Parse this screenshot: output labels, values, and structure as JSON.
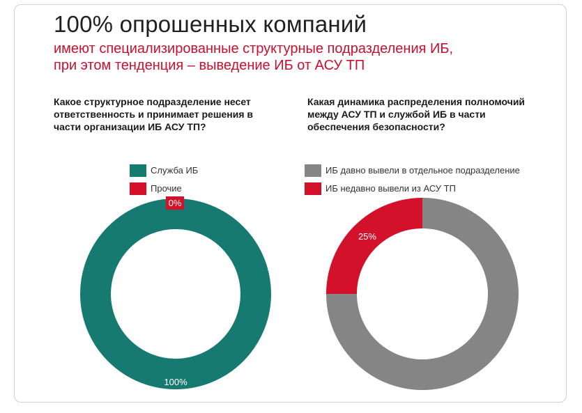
{
  "header": {
    "title": "100% опрошенных компаний",
    "subtitle_line1": "имеют специализированные структурные подразделения ИБ,",
    "subtitle_line2": "при этом тенденция – выведение ИБ от АСУ ТП"
  },
  "colors": {
    "teal": "#177a70",
    "red": "#d4112a",
    "grey": "#858585"
  },
  "chart_data": [
    {
      "type": "pie",
      "donut": true,
      "title": "Какое структурное подразделение несет ответственность и принимает решения в части организации ИБ АСУ ТП?",
      "title_lines": [
        "Какое структурное подразделение несет",
        "ответственность и принимает решения в",
        "части организации ИБ АСУ ТП?"
      ],
      "legend_position": "top",
      "series": [
        {
          "name": "Служба ИБ",
          "value": 100,
          "label": "100%",
          "color": "#177a70"
        },
        {
          "name": "Прочие",
          "value": 0,
          "label": "0%",
          "color": "#d4112a"
        }
      ]
    },
    {
      "type": "pie",
      "donut": true,
      "title": "Какая динамика распределения полномочий между АСУ ТП и службой ИБ в части обеспечения безопасности?",
      "title_lines": [
        "Какая динамика распределения полномочий",
        "между АСУ ТП и службой ИБ в части",
        "обеспечения безопасности?"
      ],
      "legend_position": "top",
      "series": [
        {
          "name": "ИБ давно вывели в отдельное подразделение",
          "value": 75,
          "label": "75%",
          "color": "#858585"
        },
        {
          "name": "ИБ недавно вывели из АСУ ТП",
          "value": 25,
          "label": "25%",
          "color": "#d4112a"
        }
      ]
    }
  ]
}
